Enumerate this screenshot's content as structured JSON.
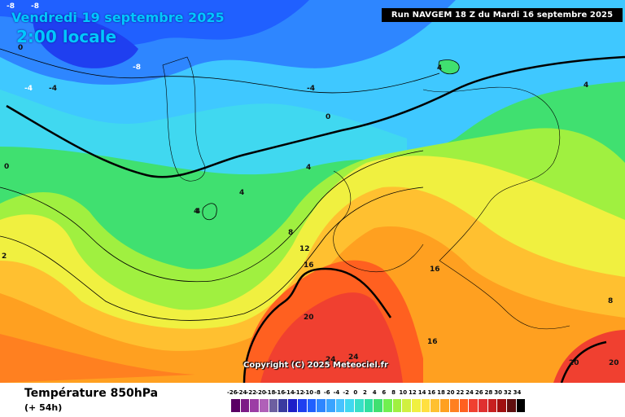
{
  "header": {
    "date": "Vendredi 19 septembre 2025",
    "time": "2:00 locale",
    "run": "Run NAVGEM 18 Z du Mardi 16 septembre 2025"
  },
  "copyright": "Copyright (C) 2025 Meteociel.fr",
  "footer": {
    "parameter": "Température 850hPa",
    "lead": "(+ 54h)"
  },
  "legend": {
    "ticks": [
      "-26",
      "-24",
      "-22",
      "-20",
      "-18",
      "-16",
      "-14",
      "-12",
      "-10",
      "-8",
      "-6",
      "-4",
      "-2",
      "0",
      "2",
      "4",
      "6",
      "8",
      "10",
      "12",
      "14",
      "16",
      "18",
      "20",
      "22",
      "24",
      "26",
      "28",
      "30",
      "32",
      "34"
    ],
    "colors": [
      "#5a0064",
      "#7d1a86",
      "#9c3ca5",
      "#b060b8",
      "#6d5fa0",
      "#3a3aa0",
      "#1e1ec8",
      "#1f3ff0",
      "#2060ff",
      "#2e86ff",
      "#3aa4ff",
      "#48c2ff",
      "#40d8f0",
      "#38e0c8",
      "#30e0a0",
      "#40e070",
      "#70f050",
      "#a0f040",
      "#d0f040",
      "#f0f040",
      "#ffe040",
      "#ffc030",
      "#ffa020",
      "#ff8020",
      "#ff6020",
      "#f04030",
      "#e03030",
      "#c82020",
      "#a01010",
      "#601010",
      "#000000"
    ]
  },
  "contour_labels": [
    "-8",
    "-8",
    "-8",
    "0",
    "-4",
    "0",
    "-4",
    "4",
    "4",
    "4",
    "4",
    "4",
    "4",
    "8",
    "12",
    "16",
    "16",
    "20",
    "20",
    "20",
    "24",
    "24",
    "16",
    "8",
    "0",
    "4",
    "-4",
    "2"
  ],
  "colors": {
    "banner_bg": "#000000",
    "title_color": "#00c8ff"
  }
}
